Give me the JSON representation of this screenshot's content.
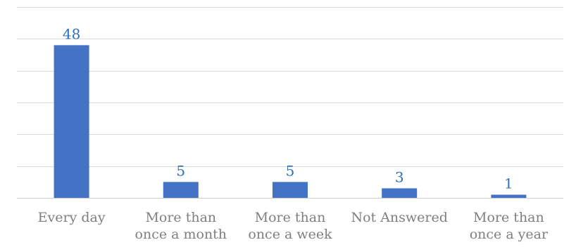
{
  "chart_data": {
    "type": "bar",
    "title": "",
    "xlabel": "",
    "ylabel": "",
    "categories": [
      [
        "Every day"
      ],
      [
        "More than",
        "once a month"
      ],
      [
        "More than",
        "once a week"
      ],
      [
        "Not Answered"
      ],
      [
        "More than",
        "once a year"
      ]
    ],
    "values": [
      48,
      5,
      5,
      3,
      1
    ],
    "ylim": [
      0,
      60
    ],
    "y_axis_visible": false,
    "grid": true,
    "data_labels": true,
    "colors": {
      "bar": "#4472c4",
      "value_label": "#2e6fb7",
      "category_label": "#7f7f7f",
      "grid": "#d9d9d9"
    }
  }
}
